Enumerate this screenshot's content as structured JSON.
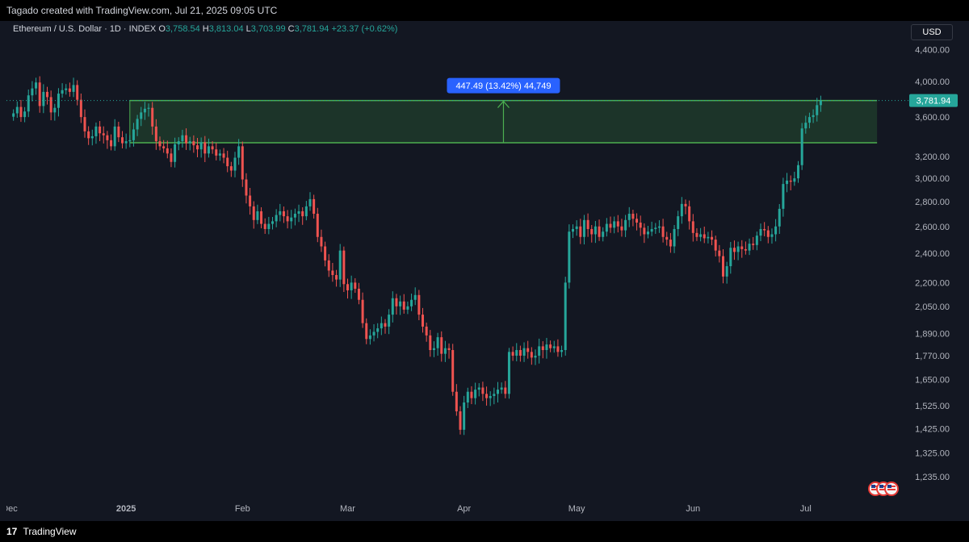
{
  "header": {
    "attribution": "Tagado created with TradingView.com, Jul 21, 2025 09:05 UTC"
  },
  "legend": {
    "symbol": "Ethereum / U.S. Dollar · 1D · INDEX",
    "open_label": "O",
    "open": "3,758.54",
    "high_label": "H",
    "high": "3,813.04",
    "low_label": "L",
    "low": "3,703.99",
    "close_label": "C",
    "close": "3,781.94",
    "change": "+23.37 (+0.62%)"
  },
  "currency_button": "USD",
  "footer": {
    "brand": "TradingView"
  },
  "colors": {
    "background": "#131722",
    "up": "#26a69a",
    "down": "#ef5350",
    "zone_fill": "#1f3a2a",
    "zone_border": "#4caf50",
    "callout": "#2962ff"
  },
  "chart_data": {
    "type": "candlestick",
    "y_scale": "log",
    "ylim": [
      1180,
      4700
    ],
    "y_ticks": [
      "4,400.00",
      "4,000.00",
      "3,600.00",
      "3,200.00",
      "3,000.00",
      "2,800.00",
      "2,600.00",
      "2,400.00",
      "2,200.00",
      "2,050.00",
      "1,890.00",
      "1,770.00",
      "1,650.00",
      "1,525.00",
      "1,425.00",
      "1,325.00",
      "1,235.00"
    ],
    "y_tick_values": [
      4400,
      4000,
      3600,
      3200,
      3000,
      2800,
      2600,
      2400,
      2200,
      2050,
      1890,
      1770,
      1650,
      1525,
      1425,
      1325,
      1235
    ],
    "x_ticks": [
      {
        "label": "Dec",
        "day": 0
      },
      {
        "label": "2025",
        "day": 31
      },
      {
        "label": "Feb",
        "day": 62
      },
      {
        "label": "Mar",
        "day": 90
      },
      {
        "label": "Apr",
        "day": 121
      },
      {
        "label": "May",
        "day": 151
      },
      {
        "label": "Jun",
        "day": 182
      },
      {
        "label": "Jul",
        "day": 212
      }
    ],
    "last_price_label": "3,781.94",
    "last_price": 3781.94,
    "measure": {
      "label": "447.49 (13.42%) 44,749",
      "from_price": 3335,
      "to_price": 3782,
      "start_day": 32,
      "end_day": 231
    },
    "closes": [
      3640,
      3710,
      3600,
      3660,
      3840,
      3920,
      3990,
      3720,
      3880,
      3820,
      3650,
      3700,
      3860,
      3900,
      3920,
      3880,
      3960,
      3790,
      3600,
      3450,
      3380,
      3400,
      3500,
      3430,
      3410,
      3360,
      3300,
      3500,
      3390,
      3330,
      3350,
      3360,
      3470,
      3580,
      3650,
      3690,
      3700,
      3500,
      3350,
      3300,
      3280,
      3230,
      3150,
      3320,
      3350,
      3410,
      3330,
      3350,
      3310,
      3270,
      3340,
      3230,
      3300,
      3270,
      3210,
      3230,
      3190,
      3110,
      3070,
      3190,
      3300,
      2990,
      2850,
      2760,
      2650,
      2720,
      2620,
      2580,
      2620,
      2640,
      2690,
      2720,
      2680,
      2640,
      2670,
      2700,
      2720,
      2680,
      2760,
      2820,
      2700,
      2520,
      2450,
      2350,
      2280,
      2250,
      2220,
      2420,
      2190,
      2150,
      2200,
      2160,
      2090,
      1950,
      1860,
      1880,
      1900,
      1920,
      1950,
      1930,
      2000,
      2100,
      2050,
      2080,
      2030,
      2050,
      2090,
      2120,
      2000,
      1930,
      1880,
      1800,
      1810,
      1870,
      1780,
      1810,
      1800,
      1590,
      1500,
      1420,
      1540,
      1590,
      1560,
      1600,
      1610,
      1580,
      1560,
      1570,
      1580,
      1600,
      1610,
      1580,
      1790,
      1770,
      1800,
      1770,
      1810,
      1790,
      1760,
      1770,
      1820,
      1800,
      1830,
      1810,
      1820,
      1790,
      1800,
      2200,
      2560,
      2580,
      2600,
      2520,
      2650,
      2580,
      2540,
      2600,
      2520,
      2560,
      2620,
      2590,
      2640,
      2600,
      2570,
      2650,
      2700,
      2660,
      2630,
      2590,
      2540,
      2560,
      2580,
      2590,
      2600,
      2520,
      2500,
      2450,
      2580,
      2680,
      2780,
      2760,
      2640,
      2550,
      2520,
      2540,
      2510,
      2520,
      2500,
      2420,
      2380,
      2240,
      2310,
      2440,
      2410,
      2450,
      2430,
      2420,
      2470,
      2460,
      2530,
      2580,
      2570,
      2520,
      2540,
      2600,
      2740,
      2950,
      2980,
      2970,
      3000,
      3120,
      3480,
      3540,
      3600,
      3620,
      3730,
      3782
    ]
  }
}
